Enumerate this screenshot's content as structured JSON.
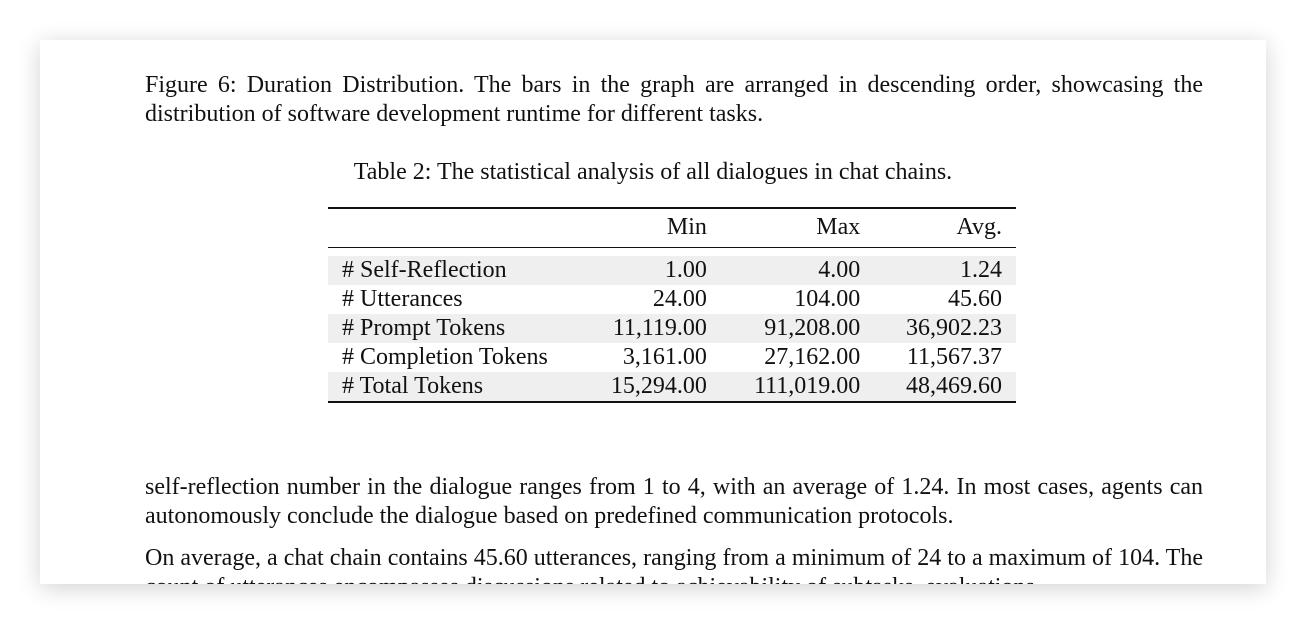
{
  "top_cut_text": "tasks",
  "figure_caption": "Figure 6: Duration Distribution. The bars in the graph are arranged in descending order, showcasing the distribution of software development runtime for different tasks.",
  "table": {
    "caption": "Table 2: The statistical analysis of all dialogues in chat chains.",
    "columns": [
      "",
      "Min",
      "Max",
      "Avg."
    ],
    "rows": [
      [
        "# Self-Reflection",
        "1.00",
        "4.00",
        "1.24"
      ],
      [
        "# Utterances",
        "24.00",
        "104.00",
        "45.60"
      ],
      [
        "# Prompt Tokens",
        "11,119.00",
        "91,208.00",
        "36,902.23"
      ],
      [
        "# Completion Tokens",
        "3,161.00",
        "27,162.00",
        "11,567.37"
      ],
      [
        "# Total Tokens",
        "15,294.00",
        "111,019.00",
        "48,469.60"
      ]
    ]
  },
  "paragraphs": [
    "self-reflection number in the dialogue ranges from 1 to 4, with an average of 1.24. In most cases, agents can autonomously conclude the dialogue based on predefined communication protocols.",
    "On average, a chat chain contains 45.60 utterances, ranging from a minimum of 24 to a maximum of 104. The count of utterances encompasses discussions related to achievability of subtasks, evaluations"
  ]
}
